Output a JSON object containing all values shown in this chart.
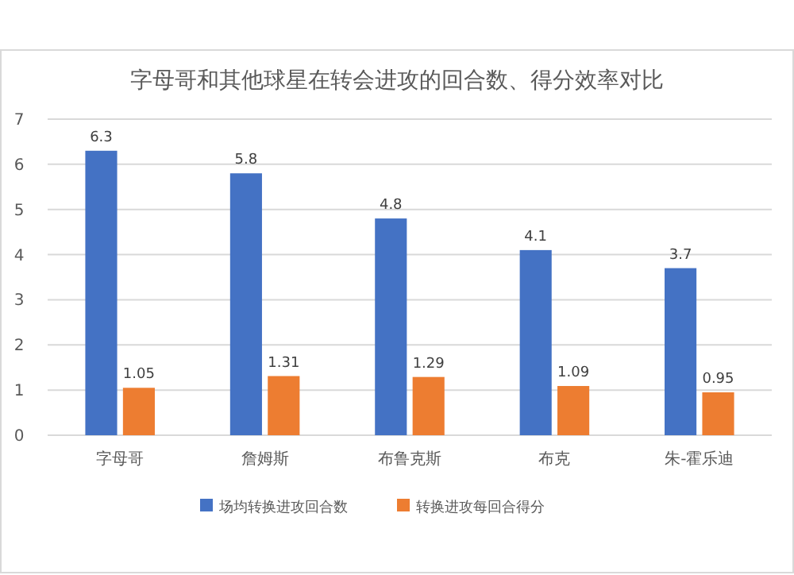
{
  "chart_data": {
    "type": "bar",
    "title": "字母哥和其他球星在转会进攻的回合数、得分效率对比",
    "categories": [
      "字母哥",
      "詹姆斯",
      "布鲁克斯",
      "布克",
      "朱-霍乐迪"
    ],
    "series": [
      {
        "name": "场均转换进攻回合数",
        "color": "#4472c4",
        "values": [
          6.3,
          5.8,
          4.8,
          4.1,
          3.7
        ]
      },
      {
        "name": "转换进攻每回合得分",
        "color": "#ed7d31",
        "values": [
          1.05,
          1.31,
          1.29,
          1.09,
          0.95
        ]
      }
    ],
    "ylim": [
      0,
      7
    ],
    "yticks": [
      0,
      1,
      2,
      3,
      4,
      5,
      6,
      7
    ],
    "grid": "y",
    "legend": "bottom",
    "data_labels": true
  }
}
